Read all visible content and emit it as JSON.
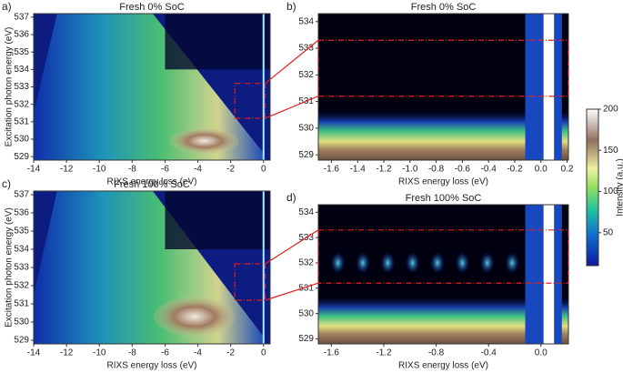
{
  "chart_data": [
    {
      "type": "heatmap",
      "label": "a)",
      "title": "Fresh 0% SoC",
      "xlabel": "RIXS energy loss (eV)",
      "ylabel": "Excitation photon energy (eV)",
      "xlim": [
        -14,
        0.4
      ],
      "ylim": [
        528.8,
        537.2
      ],
      "xticks": [
        -14,
        -12,
        -10,
        -8,
        -6,
        -4,
        -2,
        0
      ],
      "yticks": [
        529,
        530,
        531,
        532,
        533,
        534,
        535,
        536,
        537
      ]
    },
    {
      "type": "heatmap",
      "label": "b)",
      "title": "Fresh 0% SoC",
      "xlabel": "RIXS energy loss (eV)",
      "xlim": [
        -1.7,
        0.21
      ],
      "ylim": [
        528.8,
        534.3
      ],
      "xticks": [
        -1.6,
        -1.4,
        -1.2,
        {
          "value": -1,
          "label": "-1.0"
        },
        -0.8,
        -0.6,
        -0.4,
        -0.2,
        {
          "value": 0,
          "label": "0.0"
        },
        0.2
      ],
      "yticks": [
        529,
        530,
        531,
        532,
        533,
        534
      ]
    },
    {
      "type": "heatmap",
      "label": "c)",
      "title": "Fresh 100% SoC",
      "xlabel": "RIXS energy loss (eV)",
      "ylabel": "Excitation photon energy (eV)",
      "xlim": [
        -14,
        0.4
      ],
      "ylim": [
        528.8,
        537.2
      ],
      "xticks": [
        -14,
        -12,
        -10,
        -8,
        -6,
        -4,
        -2,
        0
      ],
      "yticks": [
        529,
        530,
        531,
        532,
        533,
        534,
        535,
        536,
        537
      ]
    },
    {
      "type": "heatmap",
      "label": "d)",
      "title": "Fresh 100% SoC",
      "xlabel": "RIXS energy loss (eV)",
      "xlim": [
        -1.7,
        0.21
      ],
      "ylim": [
        528.8,
        534.3
      ],
      "xticks": [
        -1.6,
        -1.2,
        -0.8,
        -0.4,
        {
          "value": 0,
          "label": "0.0"
        }
      ],
      "yticks": [
        529,
        530,
        531,
        532,
        533,
        534
      ]
    },
    {
      "type": "colorbar",
      "ylabel": "Intensity (a.u.)",
      "ylim": [
        10,
        200
      ],
      "yticks": [
        50,
        100,
        150,
        200
      ]
    }
  ]
}
